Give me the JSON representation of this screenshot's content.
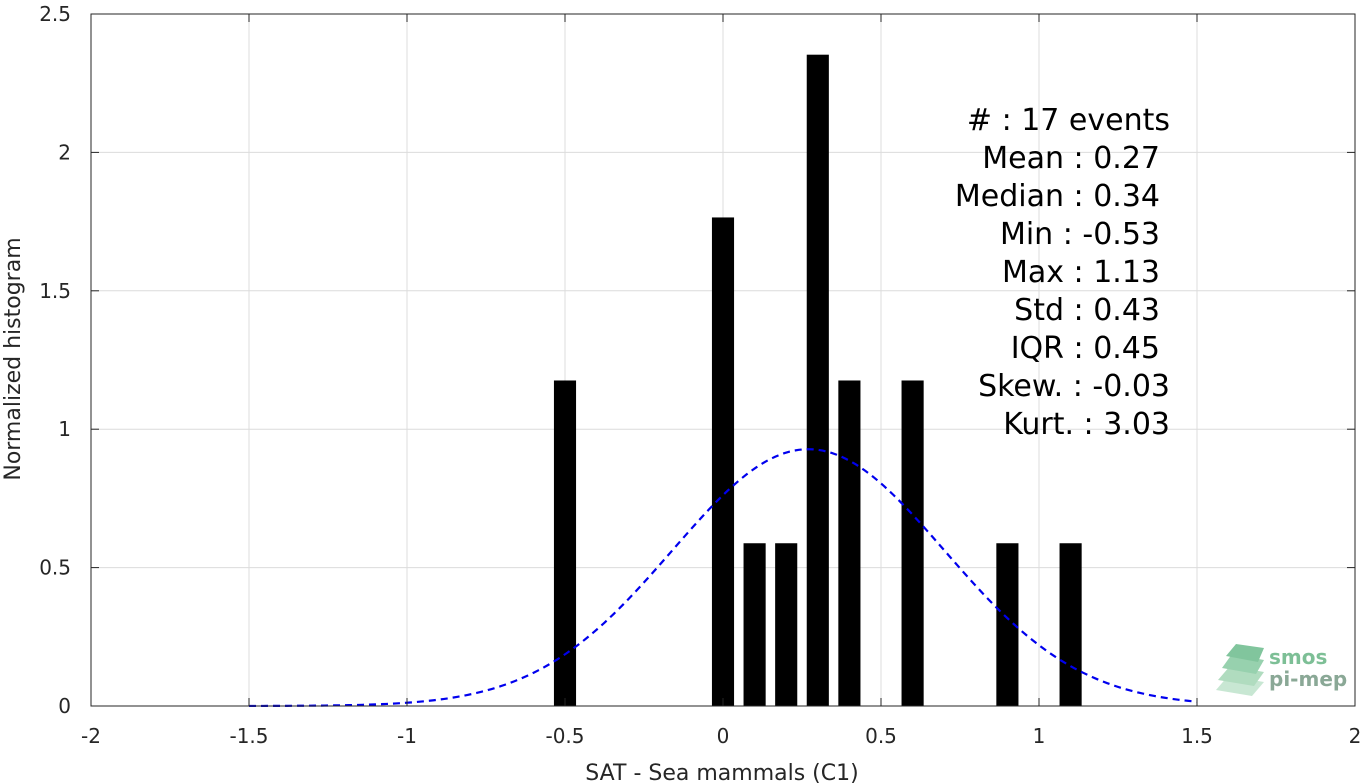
{
  "chart_data": {
    "type": "bar",
    "xlabel": "SAT - Sea mammals (C1)",
    "ylabel": "Normalized histogram",
    "xlim": [
      -2,
      2
    ],
    "ylim": [
      0,
      2.5
    ],
    "grid": true,
    "x_ticks": [
      -2,
      -1.5,
      -1,
      -0.5,
      0,
      0.5,
      1,
      1.5,
      2
    ],
    "x_tick_labels": [
      "-2",
      "-1.5",
      "-1",
      "-0.5",
      "0",
      "0.5",
      "1",
      "1.5",
      "2"
    ],
    "y_ticks": [
      0,
      0.5,
      1,
      1.5,
      2,
      2.5
    ],
    "y_tick_labels": [
      "0",
      "0.5",
      "1",
      "1.5",
      "2",
      "2.5"
    ],
    "bar_width": 0.07,
    "bars": [
      {
        "x": -0.5,
        "y": 1.176
      },
      {
        "x": 0.0,
        "y": 1.765
      },
      {
        "x": 0.1,
        "y": 0.588
      },
      {
        "x": 0.2,
        "y": 0.588
      },
      {
        "x": 0.3,
        "y": 2.353
      },
      {
        "x": 0.4,
        "y": 1.176
      },
      {
        "x": 0.6,
        "y": 1.176
      },
      {
        "x": 0.9,
        "y": 0.588
      },
      {
        "x": 1.1,
        "y": 0.588
      }
    ],
    "bar_color": "#000000",
    "fit_curve": {
      "style": "dashed",
      "color": "#0000ee",
      "mean": 0.27,
      "std": 0.43,
      "x_range": [
        -1.5,
        1.5
      ]
    },
    "stats_text": [
      "#  : 17 events",
      "Mean : 0.27",
      "Median : 0.34",
      "Min : -0.53",
      "Max : 1.13",
      "Std : 0.43",
      "IQR : 0.45",
      "Skew. : -0.03",
      "Kurt. : 3.03"
    ]
  },
  "logo": {
    "line1": "smos",
    "line2": "pi-mep",
    "color": "#7dbf96"
  }
}
